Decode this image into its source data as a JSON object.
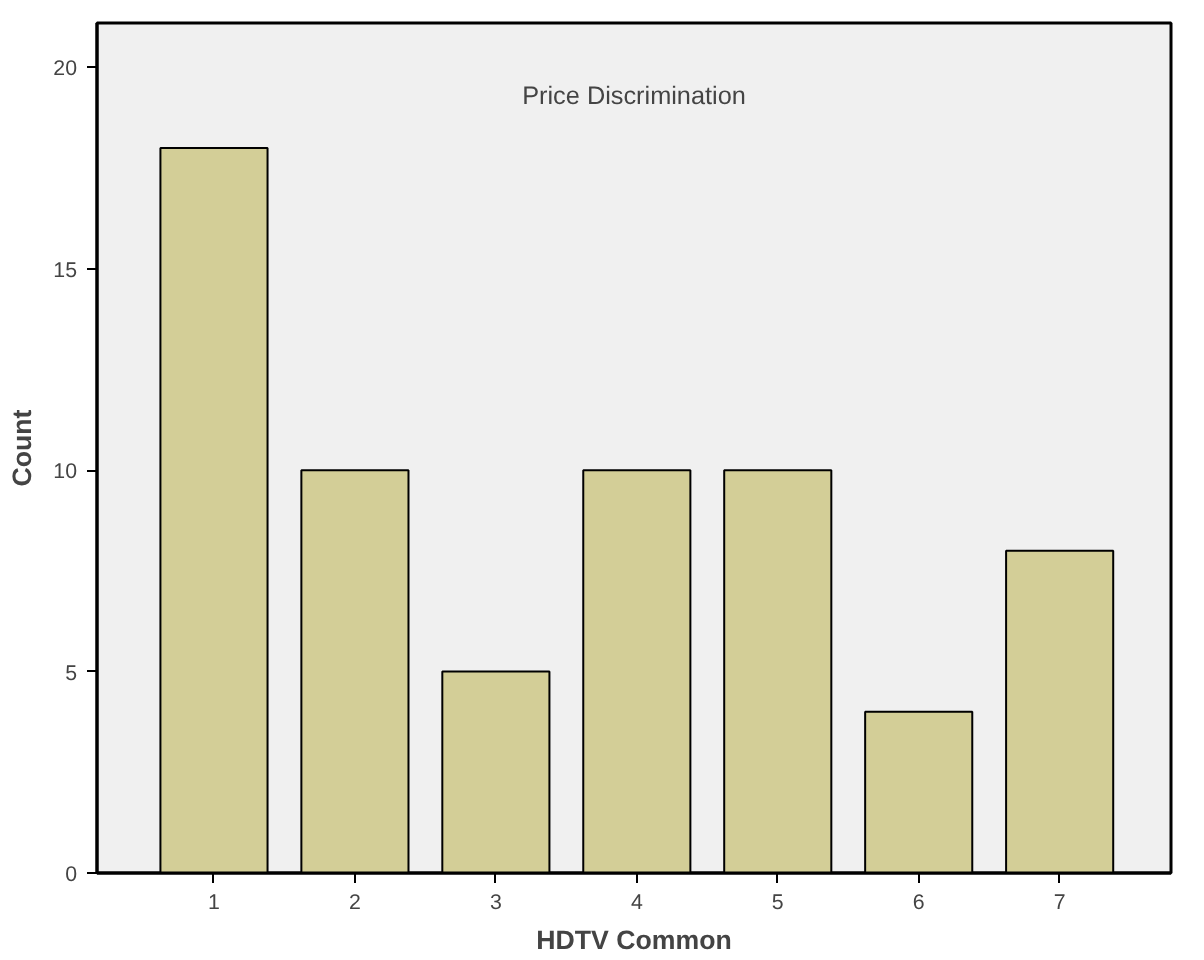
{
  "chart_data": {
    "type": "bar",
    "title": "Price Discrimination",
    "xlabel": "HDTV Common",
    "ylabel": "Count",
    "categories": [
      "1",
      "2",
      "3",
      "4",
      "5",
      "6",
      "7"
    ],
    "values": [
      18,
      10,
      5,
      10,
      10,
      4,
      8
    ],
    "color": "#d3ce97",
    "ylim": [
      0,
      21.1
    ],
    "yticks": [
      0,
      5,
      10,
      15,
      20
    ],
    "grid": false
  }
}
